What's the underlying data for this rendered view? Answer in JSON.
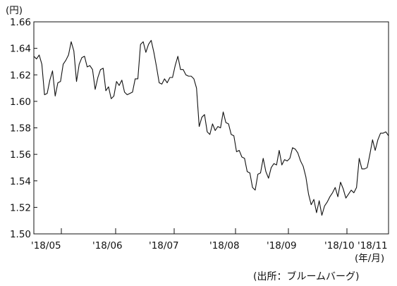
{
  "chart_data": {
    "type": "line",
    "title": "",
    "y_unit": "(円)",
    "x_unit": "(年/月)",
    "source": "(出所：ブルームバーグ)",
    "ylim": [
      1.5,
      1.66
    ],
    "y_ticks": [
      "1.50",
      "1.52",
      "1.54",
      "1.56",
      "1.58",
      "1.60",
      "1.62",
      "1.64",
      "1.66"
    ],
    "x_ticks": [
      "'18/05",
      "'18/06",
      "'18/07",
      "'18/08",
      "'18/09",
      "'18/10",
      "'18/11"
    ],
    "grid": false,
    "legend": "none",
    "line_color": "#111111",
    "series": [
      {
        "values": [
          1.634,
          1.632,
          1.635,
          1.628,
          1.605,
          1.606,
          1.616,
          1.623,
          1.604,
          1.614,
          1.615,
          1.628,
          1.631,
          1.635,
          1.645,
          1.638,
          1.615,
          1.628,
          1.633,
          1.634,
          1.626,
          1.627,
          1.624,
          1.609,
          1.618,
          1.624,
          1.625,
          1.608,
          1.611,
          1.602,
          1.604,
          1.615,
          1.612,
          1.616,
          1.607,
          1.605,
          1.606,
          1.607,
          1.617,
          1.617,
          1.643,
          1.645,
          1.637,
          1.643,
          1.646,
          1.637,
          1.626,
          1.614,
          1.613,
          1.617,
          1.614,
          1.618,
          1.618,
          1.627,
          1.634,
          1.624,
          1.624,
          1.62,
          1.619,
          1.619,
          1.617,
          1.61,
          1.581,
          1.588,
          1.59,
          1.577,
          1.575,
          1.583,
          1.578,
          1.581,
          1.58,
          1.592,
          1.584,
          1.583,
          1.575,
          1.574,
          1.562,
          1.563,
          1.558,
          1.557,
          1.547,
          1.546,
          1.535,
          1.533,
          1.545,
          1.546,
          1.557,
          1.547,
          1.542,
          1.55,
          1.553,
          1.552,
          1.563,
          1.552,
          1.556,
          1.555,
          1.557,
          1.565,
          1.564,
          1.561,
          1.555,
          1.551,
          1.543,
          1.53,
          1.522,
          1.526,
          1.516,
          1.525,
          1.514,
          1.521,
          1.524,
          1.528,
          1.531,
          1.535,
          1.528,
          1.539,
          1.534,
          1.527,
          1.53,
          1.533,
          1.531,
          1.535,
          1.557,
          1.549,
          1.549,
          1.55,
          1.56,
          1.571,
          1.563,
          1.571,
          1.576,
          1.576,
          1.577,
          1.574
        ]
      }
    ]
  }
}
